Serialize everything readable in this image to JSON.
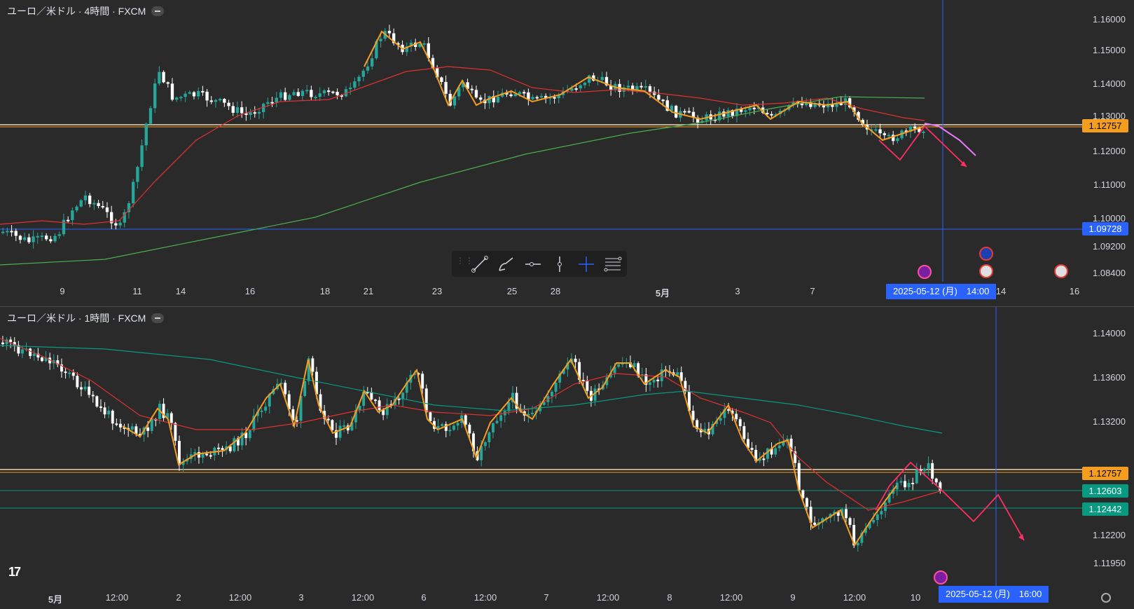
{
  "pane1": {
    "title": "ユーロ／米ドル · 4時間 · FXCM",
    "price_ticks": [
      "1.16000",
      "1.15000",
      "1.14000",
      "1.13000",
      "1.12000",
      "1.11000",
      "1.10000",
      "1.09200",
      "1.08400"
    ],
    "price_labels": [
      {
        "text": "1.12757",
        "color": "#f59d1f"
      },
      {
        "text": "1.09728",
        "color": "#2962ff"
      }
    ],
    "time_ticks": [
      "9",
      "11",
      "14",
      "16",
      "18",
      "21",
      "23",
      "25",
      "28",
      "5月",
      "3",
      "7",
      "14",
      "16"
    ],
    "crosshair_time": "2025-05-12 (月)　14:00"
  },
  "pane2": {
    "title": "ユーロ／米ドル · 1時間 · FXCM",
    "price_ticks": [
      "1.14000",
      "1.13600",
      "1.13200",
      "1.12200",
      "1.11950"
    ],
    "price_labels": [
      {
        "text": "1.12757",
        "color": "#f59d1f"
      },
      {
        "text": "1.12603",
        "color": "#089981"
      },
      {
        "text": "1.12442",
        "color": "#089981"
      }
    ],
    "time_ticks": [
      "5月",
      "12:00",
      "2",
      "12:00",
      "3",
      "12:00",
      "6",
      "12:00",
      "7",
      "12:00",
      "8",
      "12:00",
      "9",
      "12:00",
      "10"
    ],
    "crosshair_time": "2025-05-12 (月)　16:00"
  },
  "toolbar": {
    "tools": [
      "trend-line-icon",
      "brush-icon",
      "horizontal-ray-icon",
      "vertical-line-icon",
      "crosshair-icon",
      "fib-retracement-icon"
    ]
  },
  "colors": {
    "background": "#2a2a2a",
    "up": "#26a69a",
    "down": "#ffffff",
    "ma_orange": "#f59d1f",
    "ma_red": "#e03131",
    "ma_green": "#4caf50",
    "ma_teal": "#089981",
    "projection": "#ff2e63",
    "crosshair": "#2962ff"
  }
}
